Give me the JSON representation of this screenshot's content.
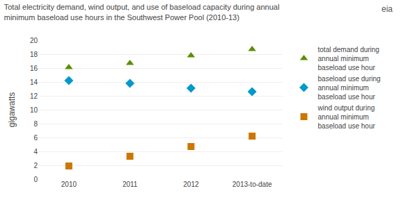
{
  "chart_data": {
    "type": "scatter",
    "title": "Total electricity demand, wind output, and use of baseload capacity during annual\nminimum baseload use hours in the Southwest Power Pool (2010-13)",
    "ylabel": "gigawatts",
    "categories": [
      "2010",
      "2011",
      "2012",
      "2013-to-date"
    ],
    "series": [
      {
        "name": "total demand during\nannual minimum\nbaseload use hour",
        "color": "#5a8f00",
        "marker": "triangle-up",
        "values": [
          16.1,
          16.7,
          17.8,
          18.7
        ]
      },
      {
        "name": "baseload use during\nannual minimum\nbaseload use hour",
        "color": "#0099cc",
        "marker": "diamond",
        "values": [
          14.2,
          13.8,
          13.1,
          12.6
        ]
      },
      {
        "name": "wind output during\nannual minimum\nbaseload use hour",
        "color": "#cc7700",
        "marker": "square",
        "values": [
          1.9,
          3.3,
          4.7,
          6.2
        ]
      }
    ],
    "ylim": [
      0,
      20
    ],
    "yticks": [
      0,
      2,
      4,
      6,
      8,
      10,
      12,
      14,
      16,
      18,
      20
    ],
    "grid": "y",
    "annotations": [
      {
        "text": "eia"
      }
    ]
  }
}
